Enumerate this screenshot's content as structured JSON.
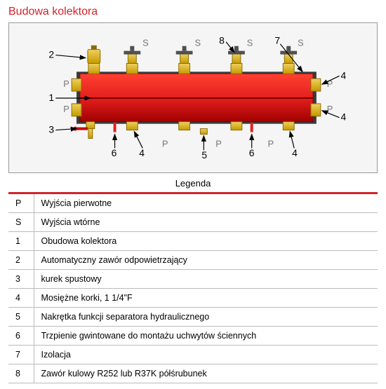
{
  "title": "Budowa kolektora",
  "title_color": "#d2232a",
  "legend_label": "Legenda",
  "accent_color": "#d2232a",
  "colors": {
    "body_red": "#e4201e",
    "body_dark": "#8b0000",
    "brass": "#e6b800",
    "brass_dark": "#c19700",
    "insulation": "#4a4a4a",
    "bg": "#f5f5f5",
    "border": "#999999",
    "grey_label": "#777777"
  },
  "rows": [
    {
      "k": "P",
      "v": "Wyjścia pierwotne"
    },
    {
      "k": "S",
      "v": "Wyjścia wtórne"
    },
    {
      "k": "1",
      "v": "Obudowa kolektora"
    },
    {
      "k": "2",
      "v": "Automatyczny zawór odpowietrzający"
    },
    {
      "k": "3",
      "v": "kurek spustowy"
    },
    {
      "k": "4",
      "v": "Mosiężne korki, 1 1/4\"F"
    },
    {
      "k": "5",
      "v": "Nakrętka funkcji separatora hydraulicznego"
    },
    {
      "k": "6",
      "v": "Trzpienie gwintowane do montażu uchwytów ściennych"
    },
    {
      "k": "7",
      "v": "Izolacja"
    },
    {
      "k": "8",
      "v": "Zawór kulowy R252  lub R37K półśrubunek"
    }
  ],
  "labels": {
    "n1": "1",
    "n2": "2",
    "n3": "3",
    "n4": "4",
    "n5": "5",
    "n6": "6",
    "n7": "7",
    "n8": "8",
    "P": "P",
    "S": "S"
  }
}
